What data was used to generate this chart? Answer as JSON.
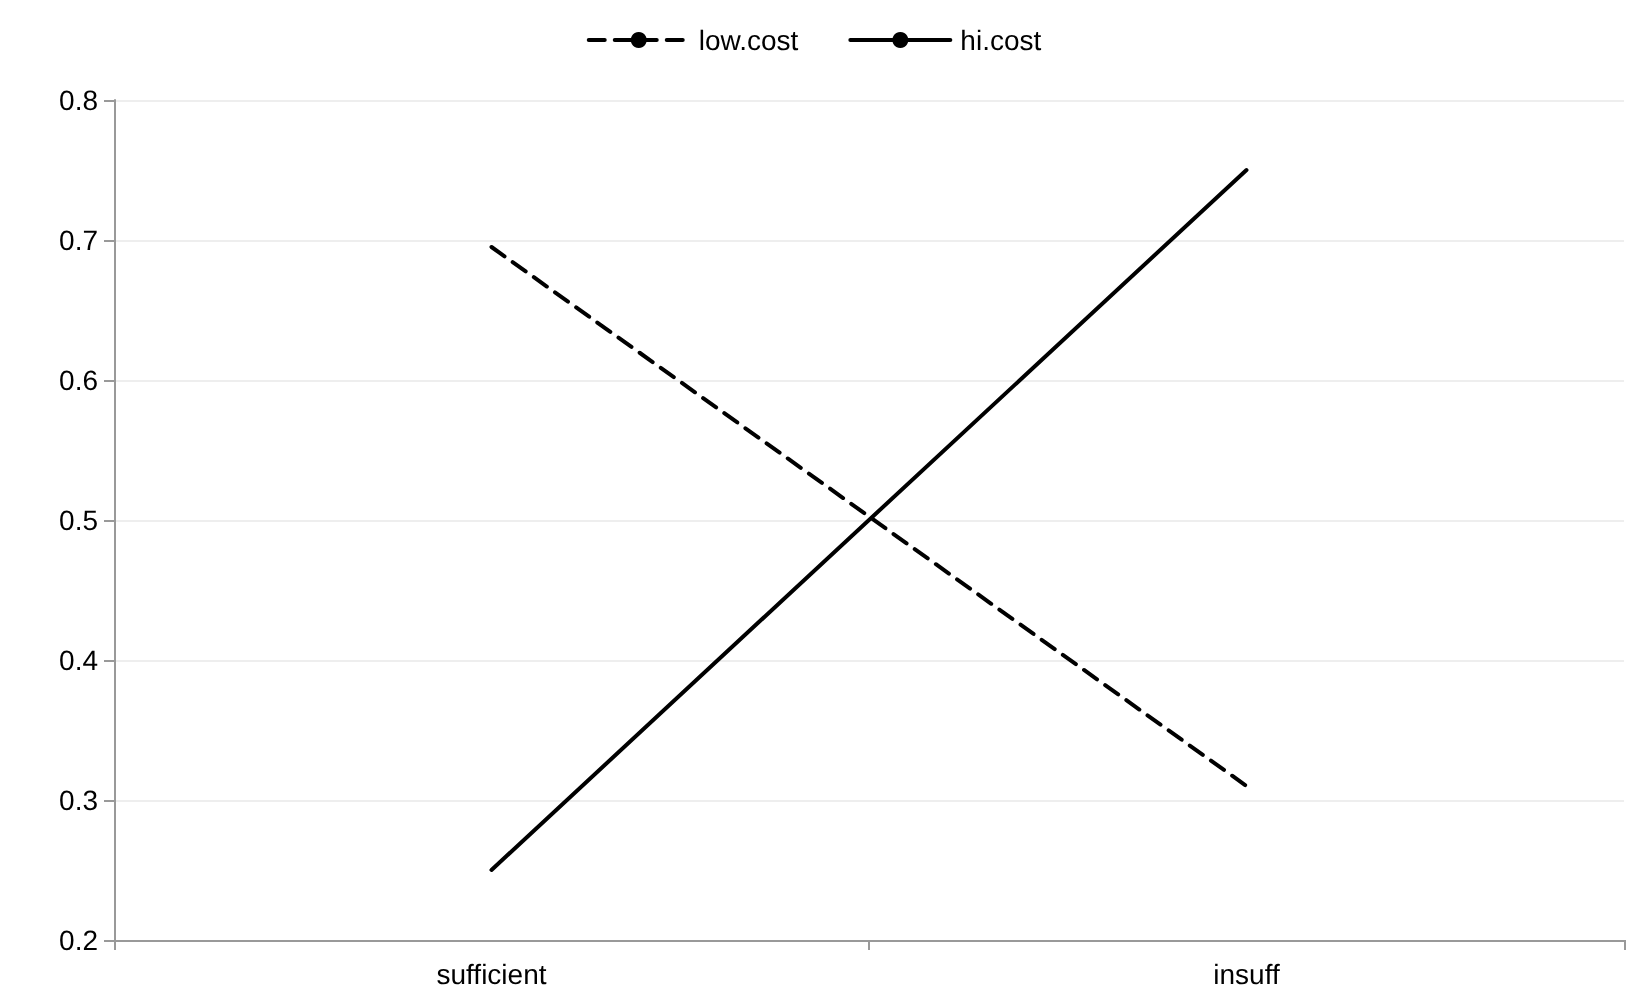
{
  "chart_data": {
    "type": "line",
    "categories": [
      "sufficient",
      "insuff"
    ],
    "series": [
      {
        "name": "low.cost",
        "color": "#000000",
        "values": [
          0.695,
          0.31
        ],
        "line_style": "dashed"
      },
      {
        "name": "hi.cost",
        "color": "#000000",
        "values": [
          0.25,
          0.75
        ],
        "line_style": "solid"
      }
    ],
    "ylim": [
      0.2,
      0.8
    ],
    "yticks": [
      0.2,
      0.3,
      0.4,
      0.5,
      0.6,
      0.7,
      0.8
    ],
    "grid": "y",
    "legend": "top",
    "marker": "none"
  }
}
